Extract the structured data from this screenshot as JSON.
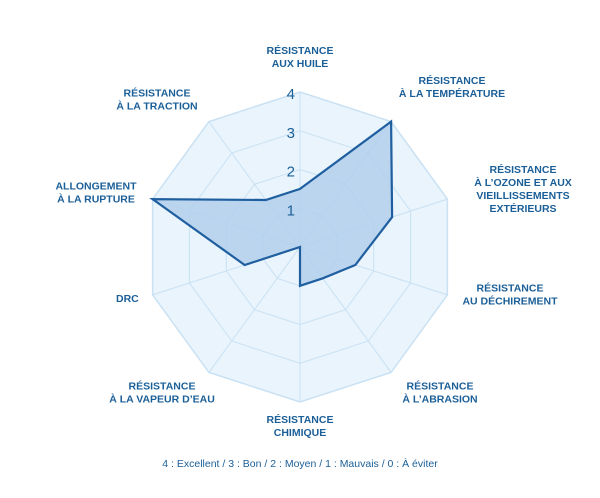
{
  "chart_data": {
    "type": "radar",
    "axes": [
      [
        "RÉSISTANCE",
        "AUX HUILE"
      ],
      [
        "RÉSISTANCE",
        "À LA TEMPÉRATURE"
      ],
      [
        "RÉSISTANCE",
        "À L’OZONE ET AUX",
        "VIEILLISSEMENTS",
        "EXTÉRIEURS"
      ],
      [
        "RÉSISTANCE",
        "AU DÉCHIREMENT"
      ],
      [
        "RÉSISTANCE",
        "À L’ABRASION"
      ],
      [
        "RÉSISTANCE",
        "CHIMIQUE"
      ],
      [
        "RÉSISTANCE",
        "À LA VAPEUR D’EAU"
      ],
      [
        "DRC"
      ],
      [
        "ALLONGEMENT",
        "À LA RUPTURE"
      ],
      [
        "RÉSISTANCE",
        "À LA TRACTION"
      ]
    ],
    "values": [
      1.5,
      4,
      2.5,
      1.5,
      1,
      1,
      0,
      1.5,
      4,
      1.5
    ],
    "rlim": [
      0,
      4
    ],
    "ticks": [
      "1",
      "2",
      "3",
      "4"
    ],
    "grid": true
  },
  "legend_text": "4 : Excellent / 3 : Bon / 2 :  Moyen / 1 : Mauvais / 0 : À éviter",
  "colors": {
    "grid_fill": "#e9f4fc",
    "grid_stroke": "#c9e1f3",
    "series_fill": "#b3cfec",
    "series_stroke": "#1f5fa0",
    "text": "#1b5f98"
  }
}
